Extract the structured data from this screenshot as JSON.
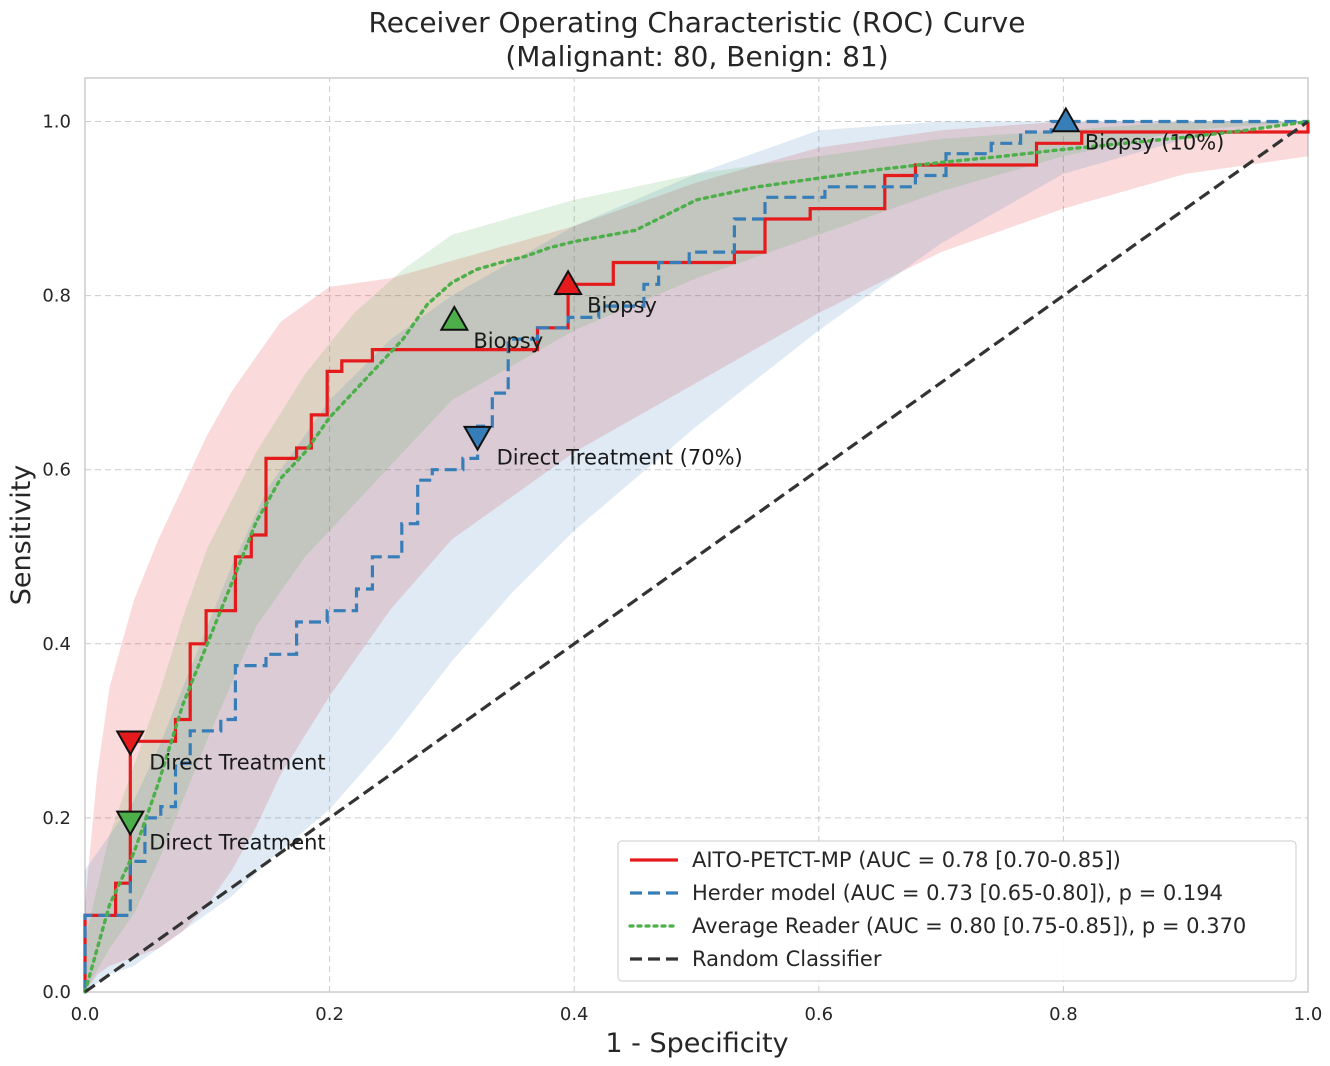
{
  "chart_data": {
    "type": "line",
    "title": "Receiver Operating Characteristic (ROC) Curve",
    "subtitle": "(Malignant: 80, Benign: 81)",
    "xlabel": "1 - Specificity",
    "ylabel": "Sensitivity",
    "xlim": [
      0,
      1
    ],
    "ylim": [
      0,
      1.05
    ],
    "x_ticks": [
      "0.0",
      "0.2",
      "0.4",
      "0.6",
      "0.8",
      "1.0"
    ],
    "y_ticks": [
      "0.0",
      "0.2",
      "0.4",
      "0.6",
      "0.8",
      "1.0"
    ],
    "grid": true,
    "legend_position": "bottom-right",
    "colors": {
      "aito": "#e41a1c",
      "herder": "#377eb8",
      "reader": "#4daf4a",
      "random": "#333333"
    },
    "series": [
      {
        "name": "AITO-PETCT-MP (AUC = 0.78 [0.70-0.85])",
        "key": "aito",
        "style": "solid",
        "x": [
          0,
          0,
          0.025,
          0.025,
          0.037,
          0.037,
          0.074,
          0.074,
          0.086,
          0.086,
          0.099,
          0.099,
          0.123,
          0.123,
          0.136,
          0.136,
          0.148,
          0.148,
          0.173,
          0.173,
          0.185,
          0.185,
          0.198,
          0.198,
          0.21,
          0.21,
          0.235,
          0.235,
          0.358,
          0.358,
          0.37,
          0.37,
          0.395,
          0.395,
          0.432,
          0.432,
          0.531,
          0.531,
          0.556,
          0.556,
          0.593,
          0.593,
          0.654,
          0.654,
          0.679,
          0.679,
          0.778,
          0.778,
          0.802,
          0.802,
          0.815,
          0.815,
          1.0,
          1.0
        ],
        "y": [
          0,
          0.088,
          0.088,
          0.125,
          0.125,
          0.288,
          0.288,
          0.313,
          0.313,
          0.4,
          0.4,
          0.438,
          0.438,
          0.5,
          0.5,
          0.525,
          0.525,
          0.613,
          0.613,
          0.625,
          0.625,
          0.663,
          0.663,
          0.713,
          0.713,
          0.725,
          0.725,
          0.738,
          0.738,
          0.738,
          0.738,
          0.763,
          0.763,
          0.813,
          0.813,
          0.838,
          0.838,
          0.85,
          0.85,
          0.888,
          0.888,
          0.9,
          0.9,
          0.938,
          0.938,
          0.95,
          0.95,
          0.975,
          0.975,
          0.975,
          0.975,
          0.988,
          0.988,
          1.0
        ]
      },
      {
        "name": "Herder model (AUC = 0.73 [0.65-0.80]), p = 0.194",
        "key": "herder",
        "style": "dashed",
        "x": [
          0,
          0,
          0.037,
          0.037,
          0.049,
          0.049,
          0.062,
          0.062,
          0.074,
          0.074,
          0.086,
          0.086,
          0.111,
          0.111,
          0.123,
          0.123,
          0.148,
          0.148,
          0.173,
          0.173,
          0.198,
          0.198,
          0.222,
          0.222,
          0.235,
          0.235,
          0.259,
          0.259,
          0.272,
          0.272,
          0.284,
          0.284,
          0.309,
          0.309,
          0.321,
          0.321,
          0.333,
          0.333,
          0.346,
          0.346,
          0.37,
          0.37,
          0.395,
          0.395,
          0.42,
          0.42,
          0.457,
          0.457,
          0.469,
          0.469,
          0.494,
          0.494,
          0.531,
          0.531,
          0.556,
          0.556,
          0.605,
          0.605,
          0.679,
          0.679,
          0.704,
          0.704,
          0.741,
          0.741,
          0.765,
          0.765,
          0.79,
          0.79,
          1.0
        ],
        "y": [
          0,
          0.088,
          0.088,
          0.15,
          0.15,
          0.2,
          0.2,
          0.213,
          0.213,
          0.263,
          0.263,
          0.3,
          0.3,
          0.313,
          0.313,
          0.375,
          0.375,
          0.388,
          0.388,
          0.425,
          0.425,
          0.438,
          0.438,
          0.463,
          0.463,
          0.5,
          0.5,
          0.538,
          0.538,
          0.588,
          0.588,
          0.6,
          0.6,
          0.613,
          0.613,
          0.65,
          0.65,
          0.688,
          0.688,
          0.75,
          0.75,
          0.763,
          0.763,
          0.775,
          0.775,
          0.788,
          0.788,
          0.813,
          0.813,
          0.838,
          0.838,
          0.85,
          0.85,
          0.888,
          0.888,
          0.913,
          0.913,
          0.925,
          0.925,
          0.938,
          0.938,
          0.963,
          0.963,
          0.975,
          0.975,
          0.988,
          0.988,
          1.0,
          1.0
        ]
      },
      {
        "name": "Average Reader (AUC = 0.80 [0.75-0.85]), p = 0.370",
        "key": "reader",
        "style": "dotted",
        "x": [
          0,
          0.02,
          0.04,
          0.06,
          0.08,
          0.1,
          0.12,
          0.14,
          0.16,
          0.18,
          0.2,
          0.22,
          0.24,
          0.26,
          0.28,
          0.3,
          0.32,
          0.34,
          0.36,
          0.38,
          0.4,
          0.45,
          0.5,
          0.55,
          0.6,
          0.65,
          0.7,
          0.75,
          0.8,
          0.85,
          0.9,
          0.95,
          1.0
        ],
        "y": [
          0,
          0.1,
          0.16,
          0.24,
          0.33,
          0.4,
          0.47,
          0.54,
          0.59,
          0.62,
          0.66,
          0.69,
          0.72,
          0.75,
          0.79,
          0.815,
          0.83,
          0.838,
          0.845,
          0.855,
          0.862,
          0.875,
          0.91,
          0.925,
          0.935,
          0.945,
          0.953,
          0.96,
          0.968,
          0.975,
          0.982,
          0.99,
          1.0
        ]
      },
      {
        "name": "Random Classifier",
        "key": "random",
        "style": "dashed",
        "x": [
          0,
          1
        ],
        "y": [
          0,
          1
        ]
      }
    ],
    "confidence_bands": [
      {
        "key": "aito",
        "x": [
          0,
          0.01,
          0.02,
          0.04,
          0.06,
          0.08,
          0.1,
          0.12,
          0.14,
          0.16,
          0.2,
          0.25,
          0.3,
          0.4,
          0.5,
          0.6,
          0.7,
          0.8,
          0.9,
          1.0
        ],
        "upper": [
          0.1,
          0.25,
          0.35,
          0.45,
          0.52,
          0.58,
          0.64,
          0.69,
          0.73,
          0.77,
          0.81,
          0.82,
          0.84,
          0.88,
          0.93,
          0.97,
          0.99,
          1.0,
          1.0,
          1.0
        ],
        "lower": [
          0.0,
          0.02,
          0.03,
          0.04,
          0.05,
          0.07,
          0.1,
          0.14,
          0.19,
          0.25,
          0.34,
          0.44,
          0.52,
          0.62,
          0.7,
          0.78,
          0.85,
          0.9,
          0.94,
          0.96
        ]
      },
      {
        "key": "herder",
        "x": [
          0,
          0.02,
          0.04,
          0.06,
          0.08,
          0.1,
          0.12,
          0.15,
          0.2,
          0.25,
          0.3,
          0.35,
          0.4,
          0.5,
          0.6,
          0.7,
          0.8,
          0.9,
          1.0
        ],
        "upper": [
          0.14,
          0.18,
          0.22,
          0.28,
          0.35,
          0.42,
          0.49,
          0.58,
          0.68,
          0.75,
          0.8,
          0.84,
          0.88,
          0.94,
          0.99,
          1.0,
          1.0,
          1.0,
          1.0
        ],
        "lower": [
          0.0,
          0.02,
          0.03,
          0.05,
          0.07,
          0.09,
          0.11,
          0.15,
          0.21,
          0.29,
          0.38,
          0.46,
          0.53,
          0.65,
          0.76,
          0.86,
          0.94,
          0.98,
          1.0
        ]
      },
      {
        "key": "reader",
        "x": [
          0,
          0.02,
          0.04,
          0.06,
          0.08,
          0.1,
          0.14,
          0.18,
          0.22,
          0.26,
          0.3,
          0.35,
          0.4,
          0.5,
          0.6,
          0.7,
          0.8,
          0.9,
          1.0
        ],
        "upper": [
          0.06,
          0.18,
          0.26,
          0.34,
          0.43,
          0.51,
          0.62,
          0.71,
          0.78,
          0.83,
          0.87,
          0.89,
          0.91,
          0.94,
          0.96,
          0.98,
          0.99,
          1.0,
          1.0
        ],
        "lower": [
          0.0,
          0.05,
          0.09,
          0.15,
          0.22,
          0.29,
          0.42,
          0.5,
          0.56,
          0.62,
          0.68,
          0.72,
          0.76,
          0.82,
          0.87,
          0.92,
          0.96,
          0.99,
          1.0
        ]
      }
    ],
    "markers": [
      {
        "series": "aito",
        "shape": "triangle-up",
        "x": 0.395,
        "y": 0.813,
        "label": "Biopsy"
      },
      {
        "series": "aito",
        "shape": "triangle-down",
        "x": 0.037,
        "y": 0.288,
        "label": "Direct Treatment"
      },
      {
        "series": "reader",
        "shape": "triangle-up",
        "x": 0.302,
        "y": 0.772,
        "label": "Biopsy"
      },
      {
        "series": "reader",
        "shape": "triangle-down",
        "x": 0.037,
        "y": 0.196,
        "label": "Direct Treatment"
      },
      {
        "series": "herder",
        "shape": "triangle-up",
        "x": 0.802,
        "y": 1.0,
        "label": "Biopsy (10%)"
      },
      {
        "series": "herder",
        "shape": "triangle-down",
        "x": 0.321,
        "y": 0.638,
        "label": "Direct Treatment (70%)"
      }
    ]
  }
}
